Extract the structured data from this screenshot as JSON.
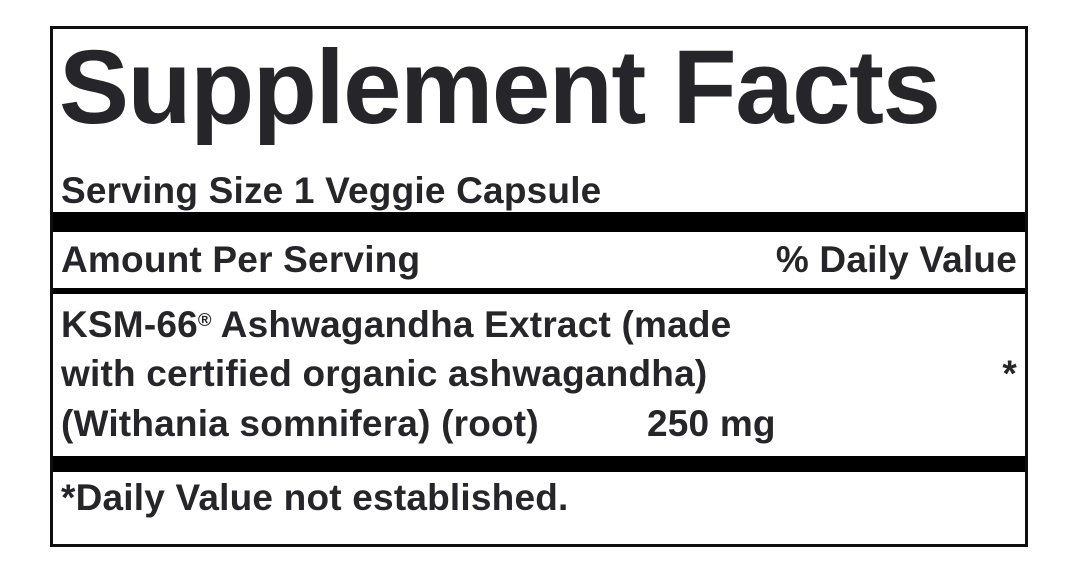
{
  "label": {
    "title": "Supplement Facts",
    "serving_size": "Serving Size 1 Veggie Capsule",
    "header": {
      "amount_per_serving": "Amount Per Serving",
      "percent_daily_value": "% Daily Value"
    },
    "ingredients": [
      {
        "brand": "KSM-66",
        "reg_mark": "®",
        "name_line1_rest": " Ashwagandha Extract (made",
        "name_line2": "with certified organic ashwagandha)",
        "name_line3": "(Withania somnifera) (root)",
        "amount": "250 mg",
        "daily_value": "*"
      }
    ],
    "footnote": "*Daily Value not established.",
    "colors": {
      "text": "#26262a",
      "bar": "#000000",
      "border": "#0f0f0f",
      "background": "#ffffff"
    }
  }
}
